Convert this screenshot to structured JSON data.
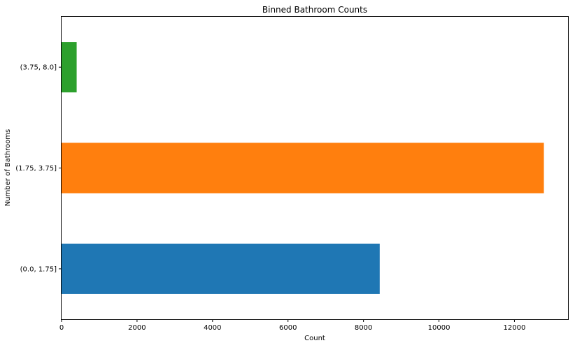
{
  "chart_data": {
    "type": "bar",
    "orientation": "horizontal",
    "title": "Binned Bathroom Counts",
    "xlabel": "Count",
    "ylabel": "Number of Bathrooms",
    "categories": [
      "(0.0, 1.75]",
      "(1.75, 3.75]",
      "(3.75, 8.0]"
    ],
    "values": [
      8430,
      12780,
      400
    ],
    "colors": [
      "#1f77b4",
      "#ff7f0e",
      "#2ca02c"
    ],
    "xlim": [
      0,
      13419
    ],
    "xticks": [
      0,
      2000,
      4000,
      6000,
      8000,
      10000,
      12000
    ],
    "grid": false,
    "legend": "none"
  }
}
